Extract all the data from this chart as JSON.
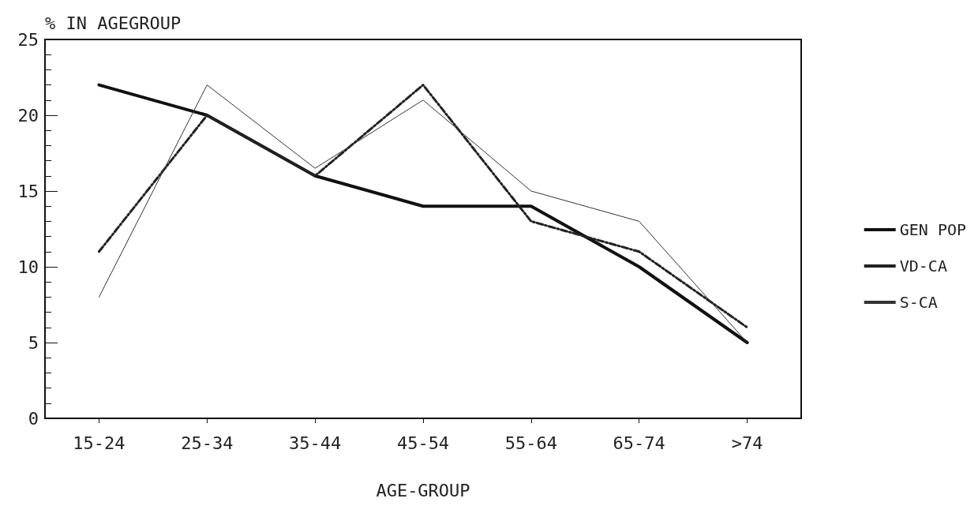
{
  "chart_data": {
    "type": "line",
    "ylabel": "% IN AGEGROUP",
    "xlabel": "AGE-GROUP",
    "categories": [
      "15-24",
      "25-34",
      "35-44",
      "45-54",
      "55-64",
      "65-74",
      ">74"
    ],
    "series": [
      {
        "name": "GEN POP",
        "color": "#111111",
        "values": [
          22,
          20,
          16,
          14,
          14,
          10,
          5
        ],
        "line_style": "solid"
      },
      {
        "name": "VD-CA",
        "color": "#222222",
        "values": [
          11,
          20,
          16,
          22,
          13,
          11,
          6
        ],
        "line_style": "dashed"
      },
      {
        "name": "S-CA",
        "color": "#333333",
        "values": [
          8,
          22,
          16.5,
          21,
          15,
          13,
          5
        ],
        "line_style": "solid"
      }
    ],
    "ylim": [
      0,
      25
    ],
    "yticks": [
      0,
      5,
      10,
      15,
      20,
      25
    ],
    "grid": false,
    "legend": "right",
    "marker": "none"
  }
}
